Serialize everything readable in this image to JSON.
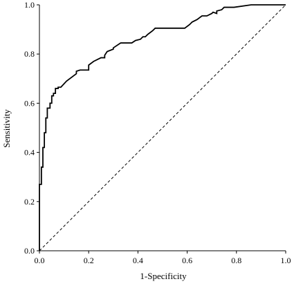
{
  "chart_data": {
    "type": "line",
    "title": "",
    "xlabel": "1-Specificity",
    "ylabel": "Sensitivity",
    "xlim": [
      0,
      1
    ],
    "ylim": [
      0,
      1
    ],
    "xticks": [
      "0.0",
      "0.2",
      "0.4",
      "0.6",
      "0.8",
      "1.0"
    ],
    "yticks": [
      "0.0",
      "0.2",
      "0.4",
      "0.6",
      "0.8",
      "1.0"
    ],
    "grid": false,
    "legend": "none",
    "series": [
      {
        "style": "solid",
        "color": "#000000",
        "x": [
          0,
          0,
          0.008,
          0.008,
          0.014,
          0.014,
          0.02,
          0.02,
          0.026,
          0.026,
          0.032,
          0.032,
          0.043,
          0.043,
          0.05,
          0.05,
          0.057,
          0.057,
          0.065,
          0.065,
          0.076,
          0.076,
          0.087,
          0.087,
          0.11,
          0.15,
          0.15,
          0.165,
          0.2,
          0.2,
          0.22,
          0.25,
          0.265,
          0.265,
          0.275,
          0.3,
          0.3,
          0.33,
          0.34,
          0.34,
          0.375,
          0.39,
          0.41,
          0.42,
          0.43,
          0.44,
          0.44,
          0.46,
          0.47,
          0.47,
          0.59,
          0.61,
          0.62,
          0.64,
          0.66,
          0.68,
          0.7,
          0.705,
          0.72,
          0.72,
          0.74,
          0.75,
          0.79,
          0.86,
          0.88,
          1.0
        ],
        "y": [
          0,
          0.27,
          0.27,
          0.34,
          0.34,
          0.42,
          0.42,
          0.48,
          0.48,
          0.54,
          0.54,
          0.58,
          0.58,
          0.6,
          0.6,
          0.63,
          0.63,
          0.64,
          0.64,
          0.66,
          0.66,
          0.665,
          0.665,
          0.665,
          0.69,
          0.72,
          0.73,
          0.735,
          0.735,
          0.755,
          0.77,
          0.785,
          0.785,
          0.795,
          0.81,
          0.82,
          0.825,
          0.845,
          0.845,
          0.845,
          0.845,
          0.855,
          0.86,
          0.87,
          0.87,
          0.88,
          0.88,
          0.895,
          0.905,
          0.905,
          0.905,
          0.92,
          0.93,
          0.94,
          0.955,
          0.955,
          0.965,
          0.97,
          0.965,
          0.975,
          0.98,
          0.99,
          0.99,
          1.0,
          1.0,
          1.0
        ]
      },
      {
        "style": "dashed",
        "color": "#000000",
        "x": [
          0,
          1
        ],
        "y": [
          0,
          1
        ]
      }
    ]
  }
}
